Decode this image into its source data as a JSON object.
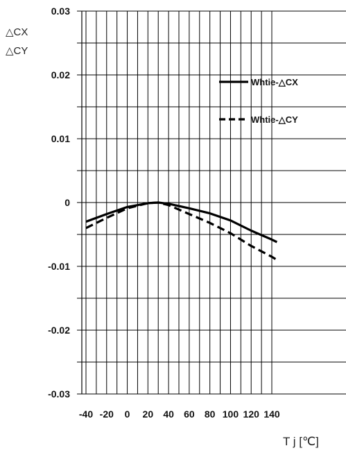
{
  "chart_data": {
    "type": "line",
    "ylabel_lines": [
      "△CX",
      "△CY"
    ],
    "xlabel": "T j [℃]",
    "xlim": [
      -40,
      145
    ],
    "ylim": [
      -0.03,
      0.03
    ],
    "x_ticks": [
      -40,
      -20,
      0,
      20,
      40,
      60,
      80,
      100,
      120,
      140
    ],
    "y_ticks": [
      0.03,
      0.02,
      0.01,
      0,
      -0.01,
      -0.02,
      -0.03
    ],
    "y_tick_labels": [
      "0.03",
      "0.02",
      "0.01",
      "0",
      "-0.01",
      "-0.02",
      "-0.03"
    ],
    "grid": true,
    "legend_position": "top-right",
    "series": [
      {
        "name": "Whtie-△CX",
        "style": "solid",
        "color": "#000000",
        "x": [
          -40,
          -20,
          0,
          20,
          30,
          40,
          60,
          80,
          100,
          120,
          140,
          145
        ],
        "y": [
          -0.003,
          -0.0018,
          -0.0007,
          -0.0001,
          0.0,
          -0.0002,
          -0.0009,
          -0.0017,
          -0.0028,
          -0.0044,
          -0.0058,
          -0.0062
        ]
      },
      {
        "name": "Whtie-△CY",
        "style": "dashed",
        "color": "#000000",
        "x": [
          -40,
          -20,
          0,
          20,
          30,
          40,
          60,
          80,
          100,
          120,
          140,
          145
        ],
        "y": [
          -0.004,
          -0.0024,
          -0.0009,
          -0.0001,
          0.0,
          -0.0004,
          -0.0018,
          -0.0032,
          -0.0048,
          -0.0068,
          -0.0085,
          -0.009
        ]
      }
    ]
  }
}
